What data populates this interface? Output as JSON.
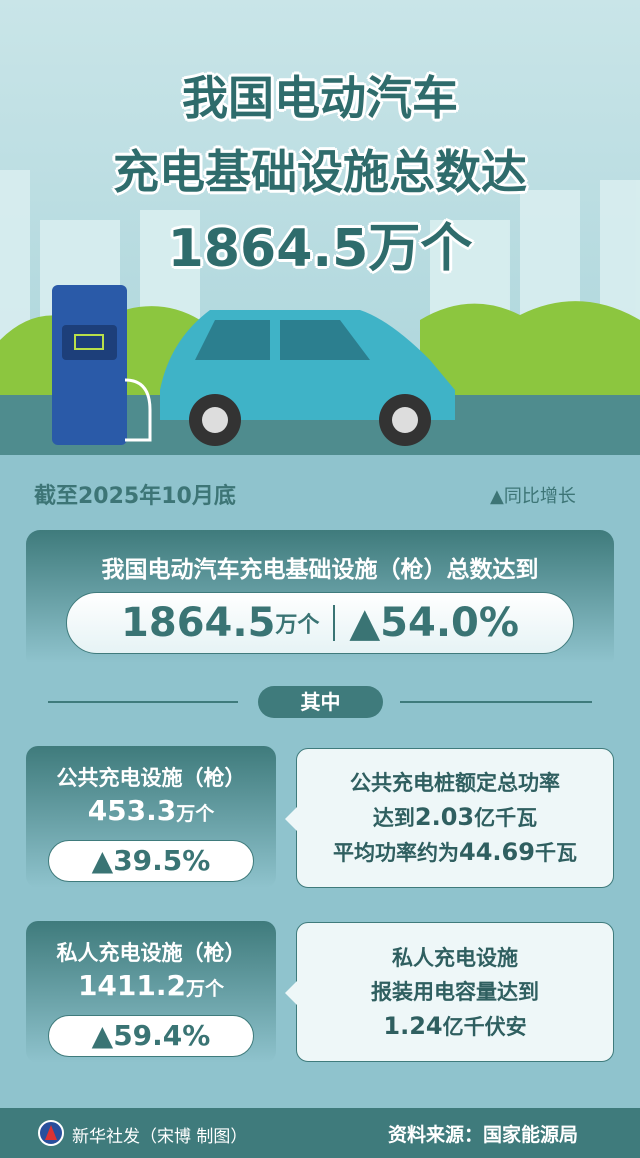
{
  "title": {
    "line1": "我国电动汽车",
    "line2": "充电基础设施总数达",
    "line3": "1864.5万个"
  },
  "as_of": "截至2025年10月底",
  "legend": "▲同比增长",
  "total": {
    "label": "我国电动汽车充电基础设施（枪）总数达到",
    "value": "1864.5",
    "unit": "万个",
    "growth": "▲54.0%"
  },
  "divider_label": "其中",
  "public": {
    "label": "公共充电设施（枪）",
    "value": "453.3",
    "unit": "万个",
    "growth": "▲39.5%",
    "note": [
      "公共充电桩额定总功率",
      "达到",
      "2.03",
      "亿千瓦",
      "平均功率约为",
      "44.69",
      "千瓦"
    ]
  },
  "private": {
    "label": "私人充电设施（枪）",
    "value": "1411.2",
    "unit": "万个",
    "growth": "▲59.4%",
    "note": [
      "私人充电设施",
      "报装用电容量达到",
      "1.24",
      "亿千伏安"
    ]
  },
  "footer": {
    "credit": "新华社发（宋博 制图）",
    "source": "资料来源：国家能源局"
  },
  "colors": {
    "primary": "#3f7b7c",
    "background": "#8fc3cd"
  }
}
